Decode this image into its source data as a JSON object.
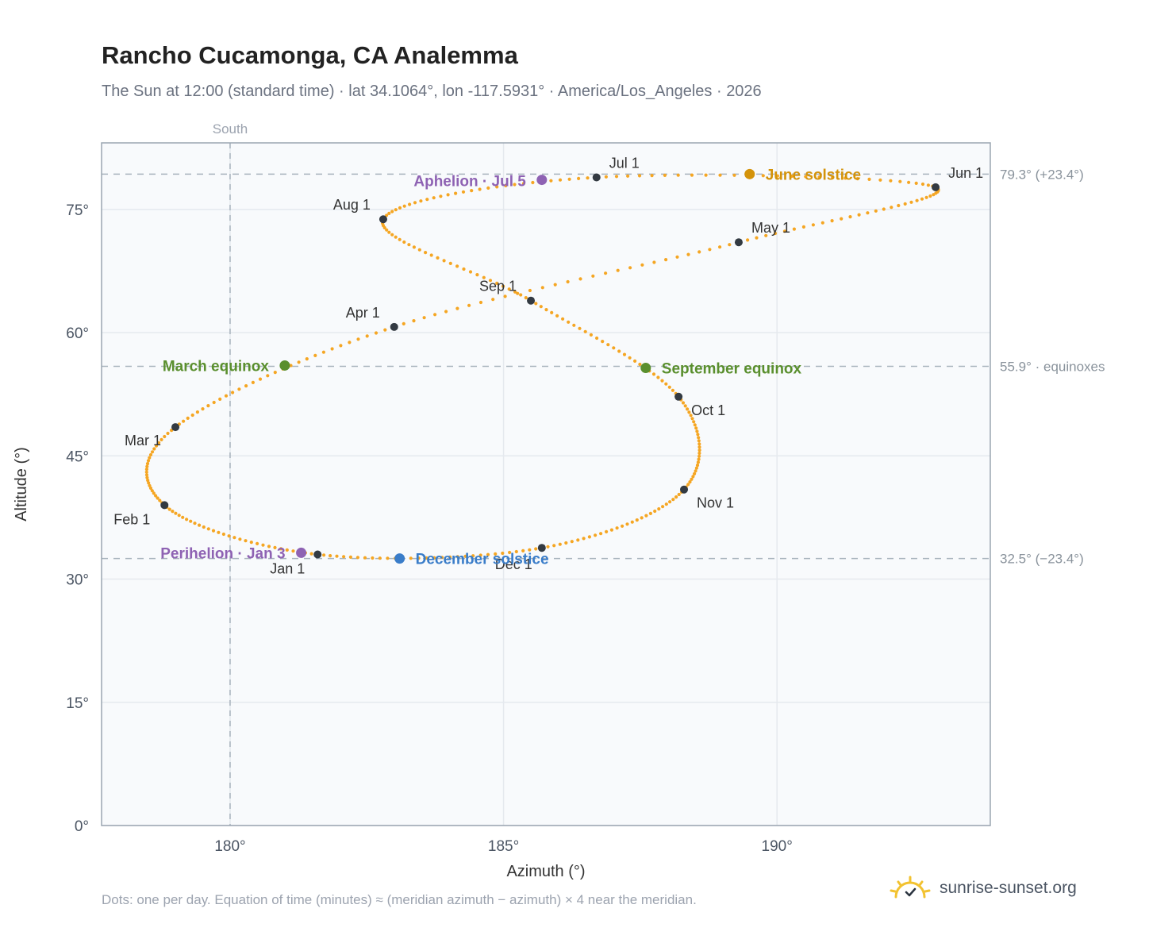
{
  "header": {
    "title": "Rancho Cucamonga, CA Analemma",
    "subtitle": "The Sun at 12:00 (standard time) · lat 34.1064°, lon -117.5931° · America/Los_Angeles · 2026"
  },
  "footer": {
    "note": "Dots: one per day. Equation of time (minutes) ≈ (meridian azimuth − azimuth) × 4 near the meridian.",
    "brand": "sunrise-sunset.org"
  },
  "colors": {
    "curve": "#f5a623",
    "month_marker": "#333a42",
    "equinox": "#5a8f2e",
    "june_solstice": "#d4930a",
    "december_solstice": "#3a7dc9",
    "apsis": "#8e62b3",
    "grid": "#e5e9ee",
    "reference_line": "#a8b3bd",
    "plot_bg": "#f8fafc",
    "plot_border": "#9aa5b1"
  },
  "chart_data": {
    "type": "scatter",
    "xlabel": "Azimuth (°)",
    "ylabel": "Altitude (°)",
    "xlim": [
      177.65,
      193.9
    ],
    "ylim": [
      0,
      83.1
    ],
    "xticks": [
      180,
      185,
      190
    ],
    "xtick_labels": [
      "180°",
      "185°",
      "190°"
    ],
    "yticks": [
      0,
      15,
      30,
      45,
      60,
      75
    ],
    "ytick_labels": [
      "0°",
      "15°",
      "30°",
      "45°",
      "60°",
      "75°"
    ],
    "grid": true,
    "south_line": {
      "x": 180,
      "label": "South"
    },
    "reference_lines": [
      {
        "y": 79.3,
        "label": "79.3° (+23.4°)"
      },
      {
        "y": 55.9,
        "label": "55.9° · equinoxes"
      },
      {
        "y": 32.5,
        "label": "32.5° (−23.4°)"
      }
    ],
    "month_points": [
      {
        "label": "Jan 1",
        "az": 181.6,
        "alt": 33.0
      },
      {
        "label": "Feb 1",
        "az": 178.8,
        "alt": 39.0
      },
      {
        "label": "Mar 1",
        "az": 179.0,
        "alt": 48.5
      },
      {
        "label": "Apr 1",
        "az": 183.0,
        "alt": 60.7
      },
      {
        "label": "May 1",
        "az": 189.3,
        "alt": 71.0
      },
      {
        "label": "Jun 1",
        "az": 192.9,
        "alt": 77.7
      },
      {
        "label": "Jul 1",
        "az": 186.7,
        "alt": 78.9
      },
      {
        "label": "Aug 1",
        "az": 182.8,
        "alt": 73.8
      },
      {
        "label": "Sep 1",
        "az": 185.5,
        "alt": 63.9
      },
      {
        "label": "Oct 1",
        "az": 188.2,
        "alt": 52.2
      },
      {
        "label": "Nov 1",
        "az": 188.3,
        "alt": 40.9
      },
      {
        "label": "Dec 1",
        "az": 185.7,
        "alt": 33.8
      }
    ],
    "events": [
      {
        "label": "March equinox",
        "az": 181.0,
        "alt": 56.0,
        "kind": "equinox"
      },
      {
        "label": "June solstice",
        "az": 189.5,
        "alt": 79.3,
        "kind": "june_solstice"
      },
      {
        "label": "September equinox",
        "az": 187.6,
        "alt": 55.7,
        "kind": "equinox"
      },
      {
        "label": "December solstice",
        "az": 183.1,
        "alt": 32.5,
        "kind": "december_solstice"
      },
      {
        "label": "Perihelion · Jan 3",
        "az": 181.3,
        "alt": 33.2,
        "kind": "apsis"
      },
      {
        "label": "Aphelion · Jul 5",
        "az": 185.7,
        "alt": 78.6,
        "kind": "apsis"
      }
    ]
  }
}
